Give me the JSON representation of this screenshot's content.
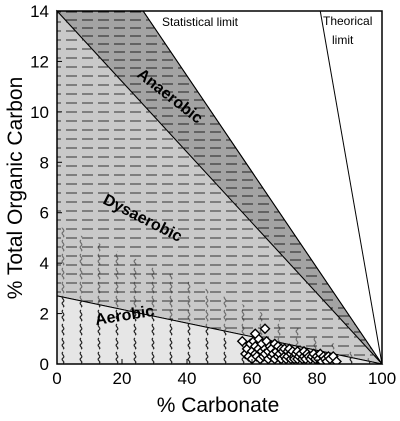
{
  "chart_data": {
    "type": "scatter",
    "title": "",
    "xlabel": "% Carbonate",
    "ylabel": "% Total Organic Carbon",
    "xlim": [
      0,
      100
    ],
    "ylim": [
      0,
      14
    ],
    "x_ticks": [
      "0",
      "20",
      "40",
      "60",
      "80",
      "100"
    ],
    "y_ticks": [
      "0",
      "2",
      "4",
      "6",
      "8",
      "10",
      "12",
      "14"
    ],
    "grid": false,
    "legend": "none",
    "zones": [
      {
        "name": "Anaerobic",
        "color": "#a3a3a3",
        "polygon": [
          [
            0,
            14
          ],
          [
            26.5,
            14
          ],
          [
            100,
            0
          ]
        ]
      },
      {
        "name": "Dysaerobic",
        "color": "#c9c9c9",
        "polygon": [
          [
            0,
            14
          ],
          [
            100,
            0
          ],
          [
            0,
            2.7
          ]
        ]
      },
      {
        "name": "Aerobic",
        "color": "#e6e6e6",
        "polygon": [
          [
            0,
            2.7
          ],
          [
            100,
            0
          ],
          [
            0,
            0
          ]
        ]
      }
    ],
    "limits": [
      {
        "name": "Statistical limit",
        "points": [
          [
            26.5,
            14
          ],
          [
            100,
            0
          ]
        ]
      },
      {
        "name": "Theorical limit",
        "points": [
          [
            81,
            14
          ],
          [
            100,
            0
          ]
        ]
      }
    ],
    "annotations": {
      "statistical_limit": "Statistical limit",
      "theorical_limit_1": "Theorical",
      "theorical_limit_2": "limit"
    },
    "zone_labels": {
      "anaerobic": "Anaerobic",
      "dysaerobic": "Dysaerobic",
      "aerobic": "Aerobic"
    },
    "series": [
      {
        "marker": "diamond",
        "points": [
          [
            58,
            0.4
          ],
          [
            58.5,
            0.6
          ],
          [
            59,
            0.3
          ],
          [
            59.5,
            0.8
          ],
          [
            60,
            0.5
          ],
          [
            60,
            0.2
          ],
          [
            60.5,
            0.9
          ],
          [
            61,
            0.4
          ],
          [
            61,
            0.7
          ],
          [
            61.5,
            0.3
          ],
          [
            62,
            0.6
          ],
          [
            62,
            1.0
          ],
          [
            62.5,
            0.2
          ],
          [
            63,
            0.5
          ],
          [
            63,
            0.8
          ],
          [
            63.5,
            0.3
          ],
          [
            64,
            0.6
          ],
          [
            64,
            0.4
          ],
          [
            64.5,
            0.9
          ],
          [
            65,
            0.2
          ],
          [
            65,
            0.5
          ],
          [
            65.5,
            0.7
          ],
          [
            66,
            0.3
          ],
          [
            66,
            0.6
          ],
          [
            66.5,
            0.4
          ],
          [
            67,
            0.8
          ],
          [
            67,
            0.2
          ],
          [
            67.5,
            0.5
          ],
          [
            68,
            0.3
          ],
          [
            68,
            0.7
          ],
          [
            68.5,
            0.4
          ],
          [
            69,
            0.6
          ],
          [
            69,
            0.2
          ],
          [
            69.5,
            0.5
          ],
          [
            70,
            0.3
          ],
          [
            70,
            0.6
          ],
          [
            70.5,
            0.2
          ],
          [
            71,
            0.5
          ],
          [
            71,
            0.3
          ],
          [
            71.5,
            0.6
          ],
          [
            72,
            0.2
          ],
          [
            72,
            0.4
          ],
          [
            72.5,
            0.5
          ],
          [
            73,
            0.3
          ],
          [
            73,
            0.2
          ],
          [
            73.5,
            0.4
          ],
          [
            74,
            0.5
          ],
          [
            74,
            0.2
          ],
          [
            74.5,
            0.3
          ],
          [
            75,
            0.4
          ],
          [
            75.5,
            0.2
          ],
          [
            76,
            0.3
          ],
          [
            76,
            0.5
          ],
          [
            76.5,
            0.2
          ],
          [
            77,
            0.4
          ],
          [
            77.5,
            0.3
          ],
          [
            78,
            0.2
          ],
          [
            78.5,
            0.3
          ],
          [
            79,
            0.4
          ],
          [
            79.5,
            0.2
          ],
          [
            80,
            0.3
          ],
          [
            80.5,
            0.2
          ],
          [
            81,
            0.4
          ],
          [
            81.5,
            0.1
          ],
          [
            82,
            0.3
          ],
          [
            82.5,
            0.2
          ],
          [
            83,
            0.1
          ],
          [
            83.5,
            0.3
          ],
          [
            84,
            0.2
          ],
          [
            85,
            0.3
          ],
          [
            86,
            0.1
          ],
          [
            64,
            1.4
          ],
          [
            61,
            1.2
          ],
          [
            57,
            0.9
          ]
        ]
      }
    ]
  }
}
